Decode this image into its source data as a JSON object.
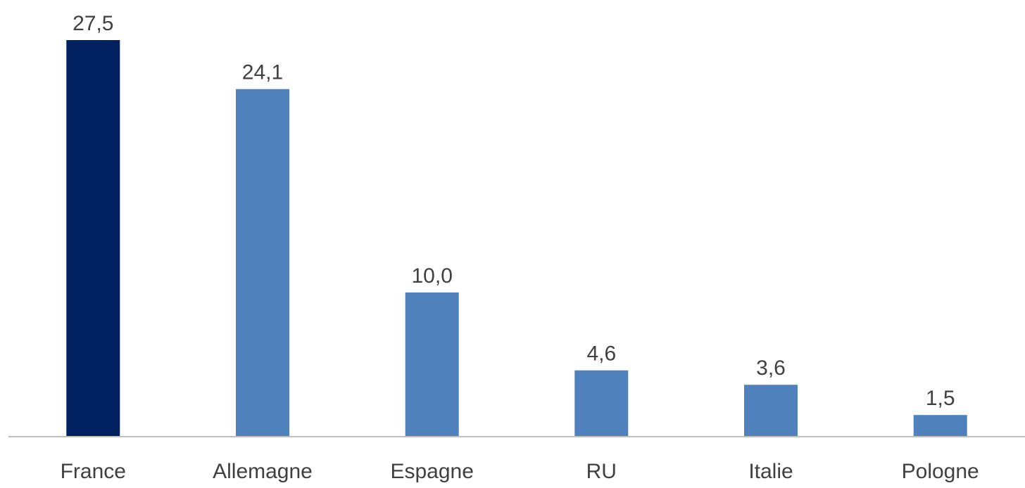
{
  "chart_data": {
    "type": "bar",
    "categories": [
      "France",
      "Allemagne",
      "Espagne",
      "RU",
      "Italie",
      "Pologne"
    ],
    "values": [
      27.5,
      24.1,
      10.0,
      4.6,
      3.6,
      1.5
    ],
    "value_labels": [
      "27,5",
      "24,1",
      "10,0",
      "4,6",
      "3,6",
      "1,5"
    ],
    "ylim": [
      0,
      27.5
    ],
    "grid": false,
    "legend": "none",
    "colors": {
      "highlight": "#002060",
      "default": "#4F81BD",
      "axis": "#BFBFBF",
      "text": "#404040"
    },
    "highlight_index": 0
  }
}
